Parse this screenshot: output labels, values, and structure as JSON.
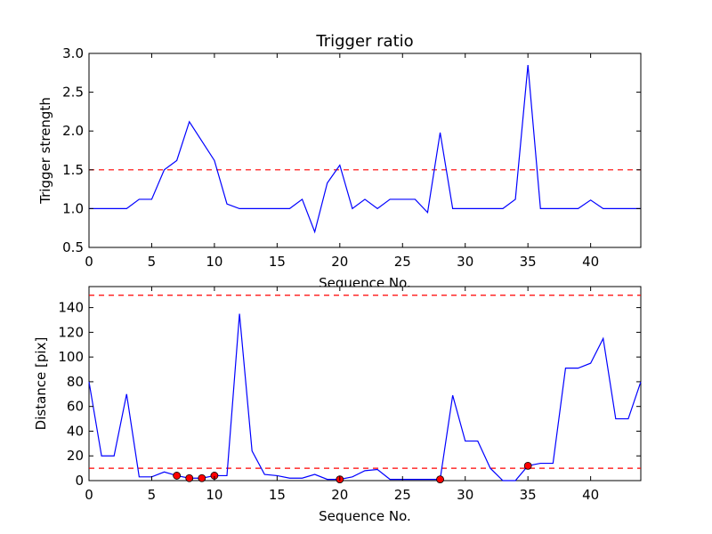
{
  "chart_data": [
    {
      "type": "line",
      "title": "Trigger ratio",
      "xlabel": "Sequence No.",
      "ylabel": "Trigger strength",
      "xlim": [
        0,
        44
      ],
      "ylim": [
        0.5,
        3.0
      ],
      "xticks": [
        "0",
        "5",
        "10",
        "15",
        "20",
        "25",
        "30",
        "35",
        "40"
      ],
      "yticks": [
        "0.5",
        "1.0",
        "1.5",
        "2.0",
        "2.5",
        "3.0"
      ],
      "grid": false,
      "series": [
        {
          "color": "#0000ff",
          "x": [
            0,
            1,
            2,
            3,
            4,
            5,
            6,
            7,
            8,
            9,
            10,
            11,
            12,
            13,
            14,
            15,
            16,
            17,
            18,
            19,
            20,
            21,
            22,
            23,
            24,
            25,
            26,
            27,
            28,
            29,
            30,
            31,
            32,
            33,
            34,
            35,
            36,
            37,
            38,
            39,
            40,
            41,
            42,
            43,
            44
          ],
          "values": [
            1.0,
            1.0,
            1.0,
            1.0,
            1.12,
            1.12,
            1.5,
            1.62,
            2.12,
            1.87,
            1.62,
            1.06,
            1.0,
            1.0,
            1.0,
            1.0,
            1.0,
            1.12,
            0.7,
            1.33,
            1.56,
            1.0,
            1.12,
            1.0,
            1.12,
            1.12,
            1.12,
            0.95,
            1.98,
            1.0,
            1.0,
            1.0,
            1.0,
            1.0,
            1.12,
            2.85,
            1.0,
            1.0,
            1.0,
            1.0,
            1.11,
            1.0,
            1.0,
            1.0,
            1.0
          ]
        }
      ],
      "threshold": {
        "value": 1.5,
        "color": "#ff0000",
        "style": "dashed"
      }
    },
    {
      "type": "line",
      "title": "",
      "xlabel": "Sequence No.",
      "ylabel": "Distance [pix]",
      "xlim": [
        0,
        44
      ],
      "ylim": [
        0,
        157
      ],
      "xticks": [
        "0",
        "5",
        "10",
        "15",
        "20",
        "25",
        "30",
        "35",
        "40"
      ],
      "yticks": [
        "0",
        "20",
        "40",
        "60",
        "80",
        "100",
        "120",
        "140"
      ],
      "grid": false,
      "series": [
        {
          "color": "#0000ff",
          "x": [
            0,
            1,
            2,
            3,
            4,
            5,
            6,
            7,
            8,
            9,
            10,
            11,
            12,
            13,
            14,
            15,
            16,
            17,
            18,
            19,
            20,
            21,
            22,
            23,
            24,
            25,
            26,
            27,
            28,
            29,
            30,
            31,
            32,
            33,
            34,
            35,
            36,
            37,
            38,
            39,
            40,
            41,
            42,
            43,
            44
          ],
          "values": [
            80,
            20,
            20,
            70,
            3,
            3,
            7,
            4,
            2,
            2,
            4,
            4,
            135,
            24,
            5,
            4,
            2,
            2,
            5,
            1,
            1,
            3,
            8,
            9,
            1,
            1,
            1,
            1,
            1,
            69,
            32,
            32,
            10,
            0,
            0,
            12,
            14,
            14,
            91,
            91,
            95,
            115,
            50,
            50,
            80
          ]
        }
      ],
      "markers": {
        "color": "#ff0000",
        "x": [
          7,
          8,
          9,
          10,
          20,
          28,
          35
        ],
        "y": [
          4,
          2,
          2,
          4,
          1,
          1,
          12
        ]
      },
      "thresholds": [
        {
          "value": 150,
          "color": "#ff0000",
          "style": "dashed"
        },
        {
          "value": 10,
          "color": "#ff0000",
          "style": "dashed"
        }
      ]
    }
  ]
}
